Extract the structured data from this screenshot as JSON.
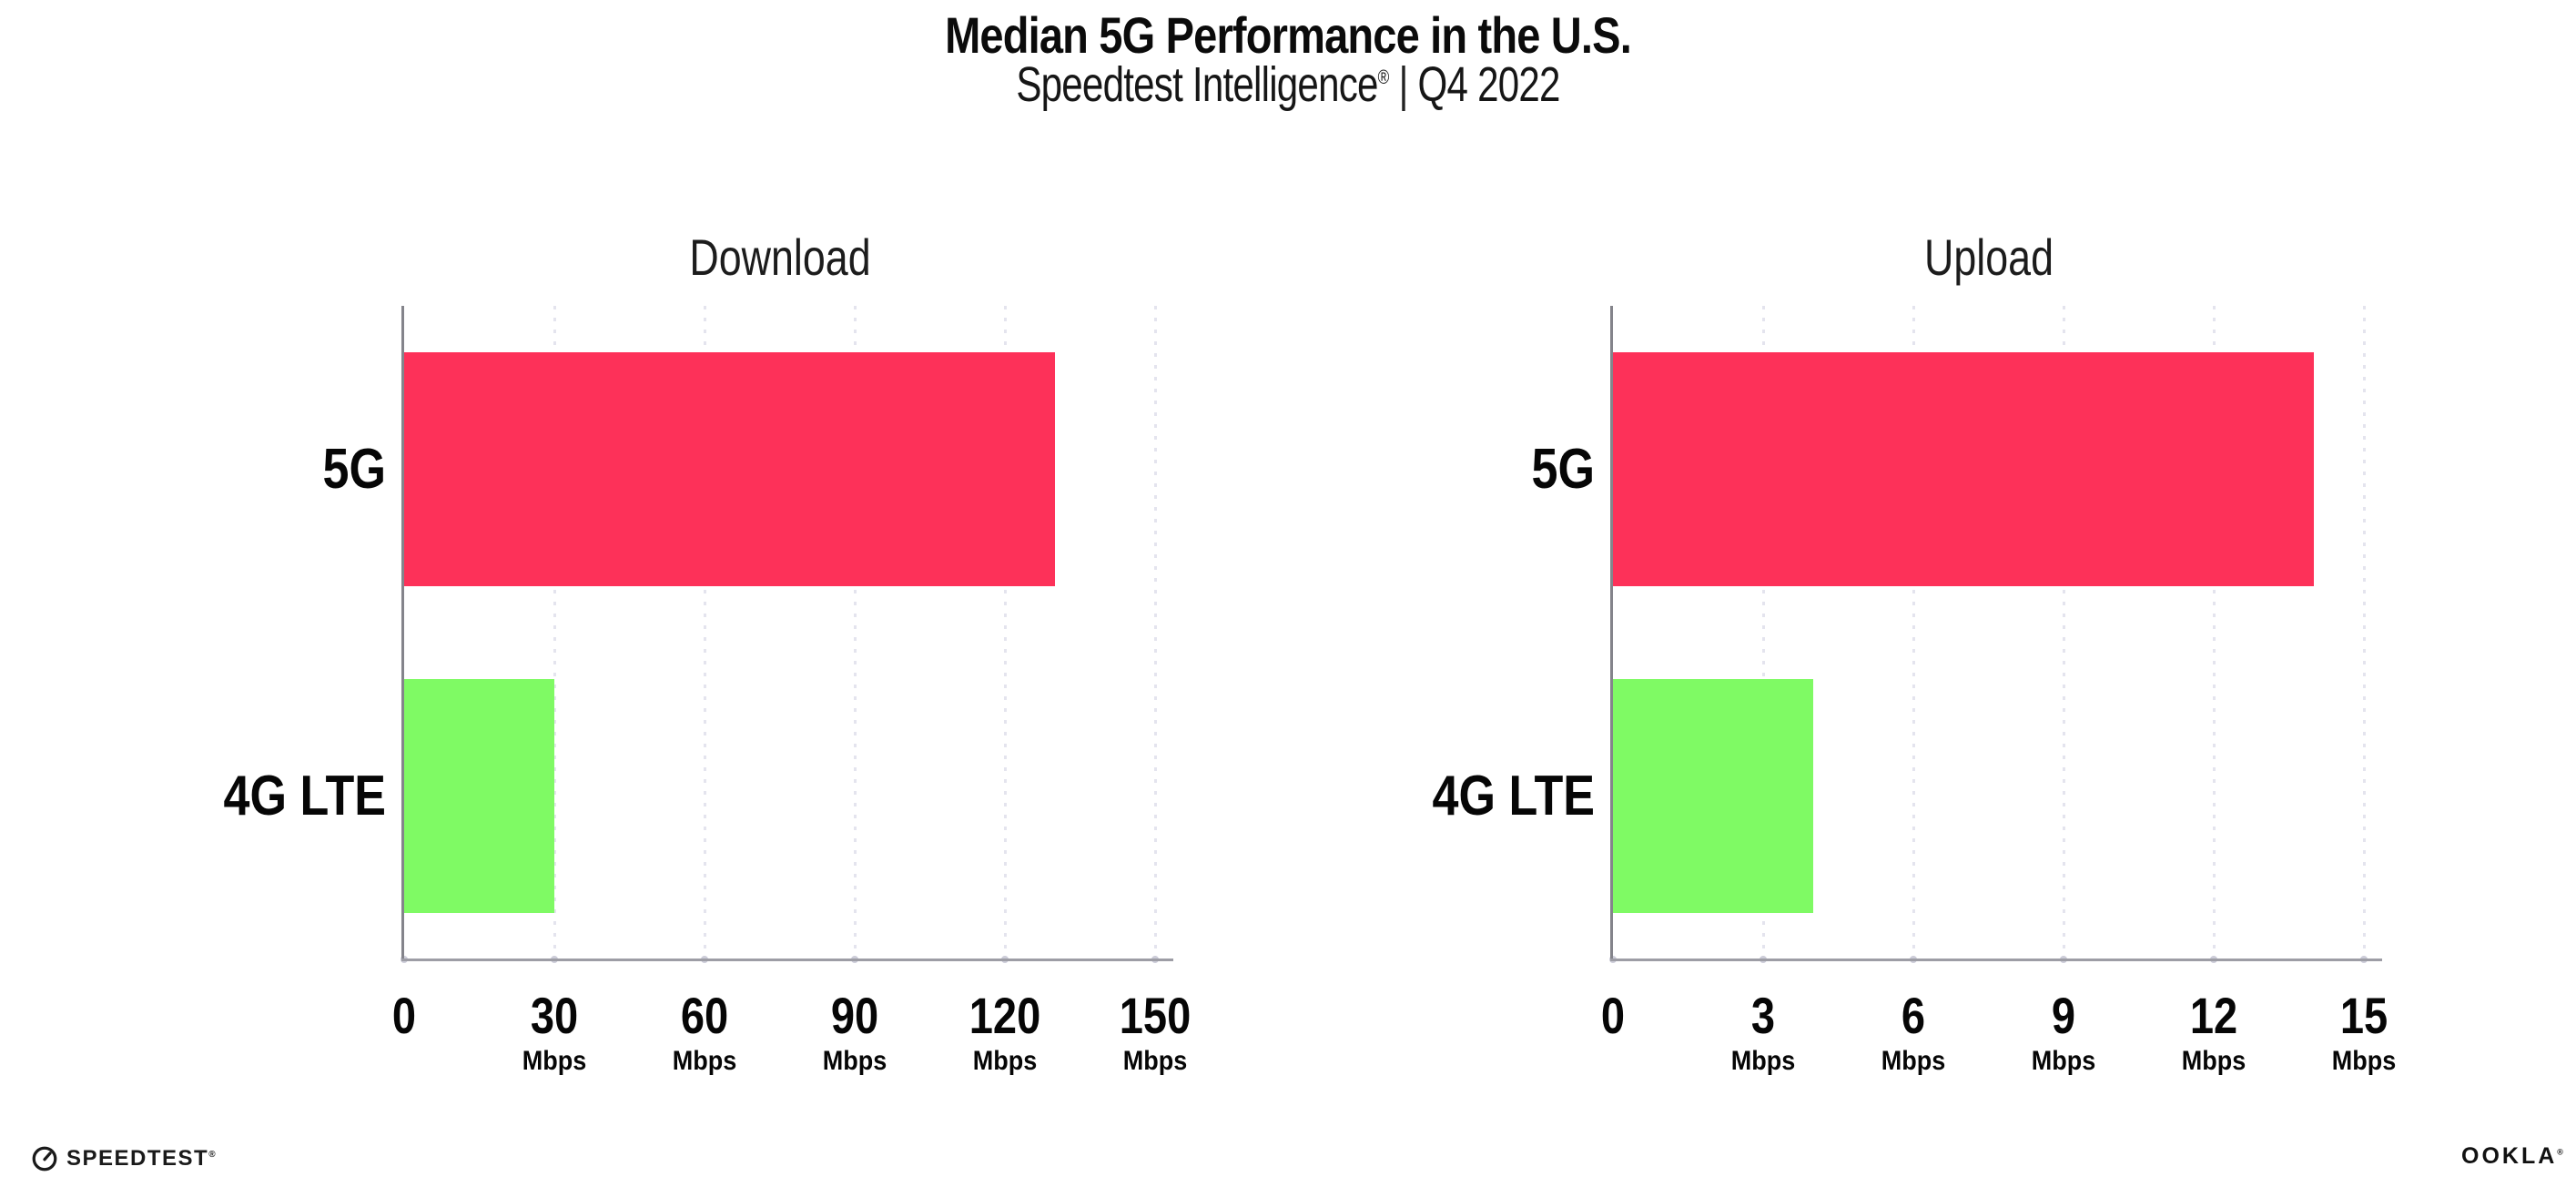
{
  "header": {
    "title": "Median 5G Performance in the U.S.",
    "subtitle_product": "Speedtest Intelligence",
    "subtitle_mark": "®",
    "subtitle_separator": "|",
    "subtitle_period": "Q4 2022"
  },
  "chart_data": [
    {
      "type": "bar",
      "orientation": "horizontal",
      "title": "Download",
      "categories": [
        "5G",
        "4G LTE"
      ],
      "values": [
        130,
        30
      ],
      "unit": "Mbps",
      "xlabel": "",
      "ylabel": "",
      "xlim": [
        0,
        150
      ],
      "xticks": [
        0,
        30,
        60,
        90,
        120,
        150
      ],
      "tick_unit_label": "Mbps",
      "grid": "vertical-dotted",
      "legend": "none",
      "bar_colors": [
        "#fd3159",
        "#7ffa64"
      ]
    },
    {
      "type": "bar",
      "orientation": "horizontal",
      "title": "Upload",
      "categories": [
        "5G",
        "4G LTE"
      ],
      "values": [
        14,
        4
      ],
      "unit": "Mbps",
      "xlabel": "",
      "ylabel": "",
      "xlim": [
        0,
        15
      ],
      "xticks": [
        0,
        3,
        6,
        9,
        12,
        15
      ],
      "tick_unit_label": "Mbps",
      "grid": "vertical-dotted",
      "legend": "none",
      "bar_colors": [
        "#fd3159",
        "#7ffa64"
      ]
    }
  ],
  "footer": {
    "speedtest_label": "SPEEDTEST",
    "speedtest_mark": "®",
    "ookla_label": "OOKLA",
    "ookla_mark": "®"
  },
  "colors": {
    "bar_5g": "#fd3159",
    "bar_4g_lte": "#7ffa64",
    "grid_dot": "#e4e4ee",
    "axis_line": "#9d9da5",
    "text": "#0d0d0d"
  }
}
